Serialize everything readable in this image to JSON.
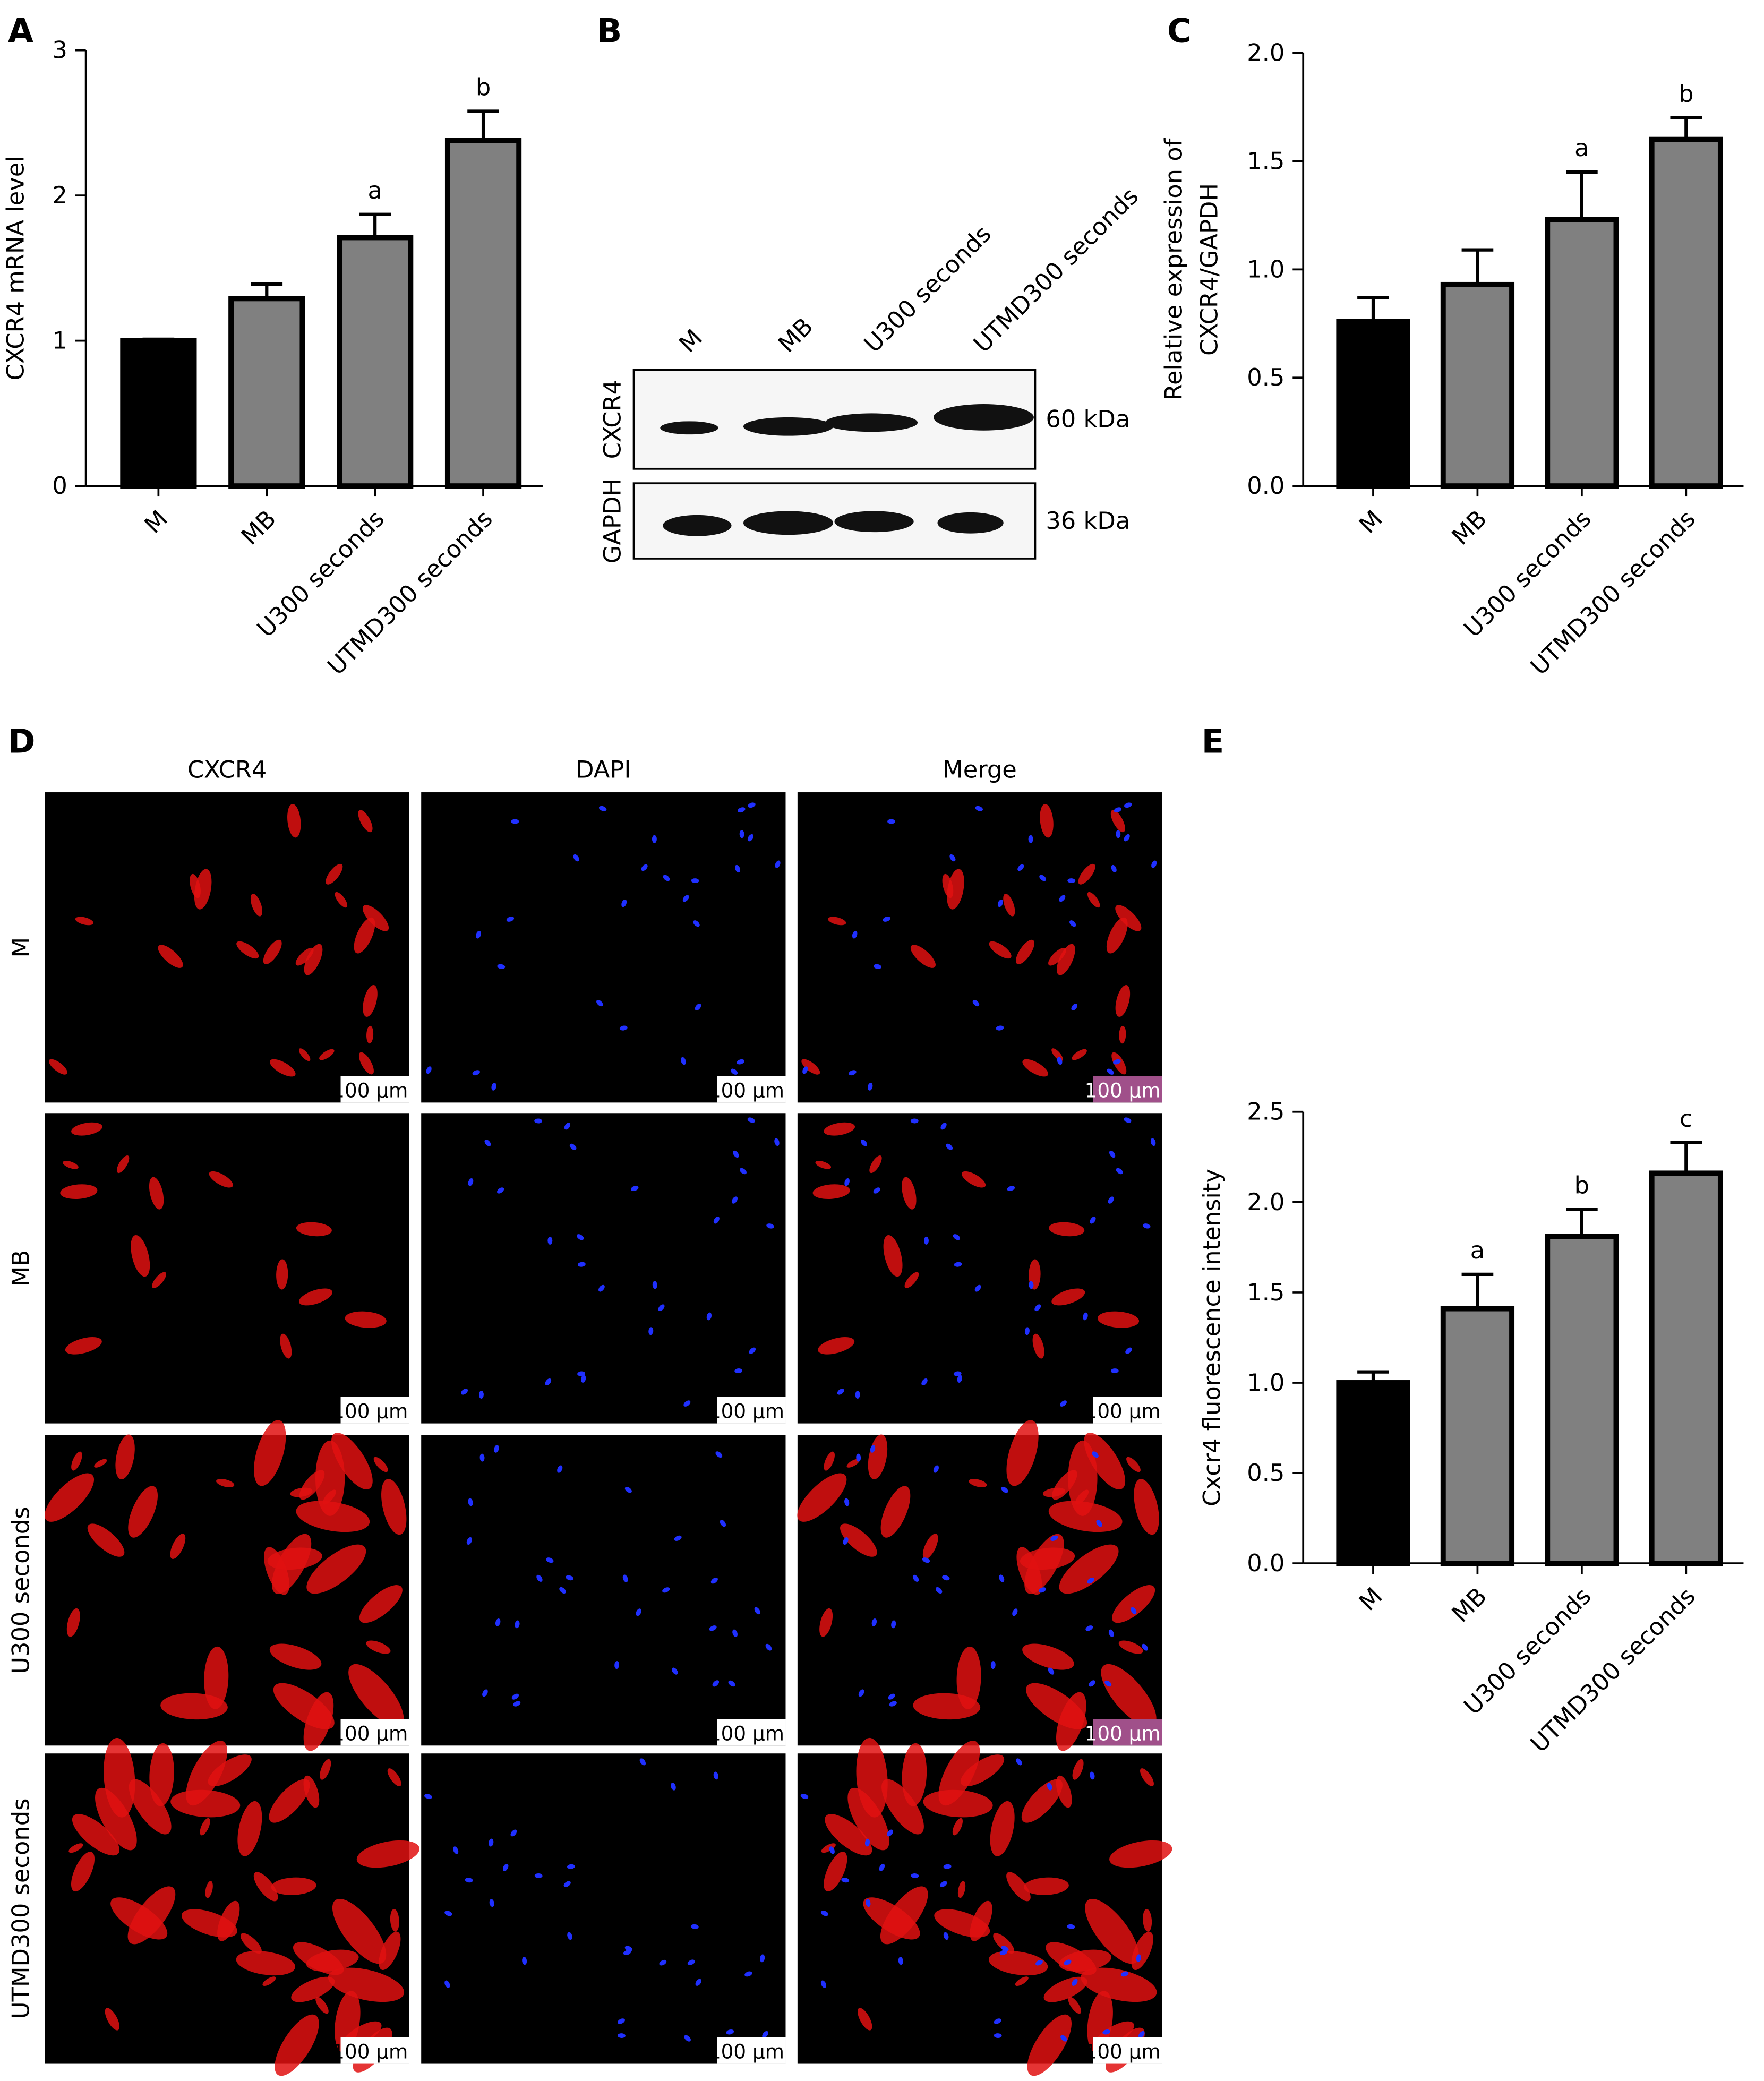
{
  "chart_data": [
    {
      "type": "bar",
      "panel": "A",
      "ylabel": [
        "CXCR4 mRNA level"
      ],
      "categories": [
        "M",
        "MB",
        "U300 seconds",
        "UTMD300 seconds"
      ],
      "values": [
        1.0,
        1.29,
        1.71,
        2.38
      ],
      "errors": [
        0.01,
        0.1,
        0.16,
        0.2
      ],
      "significance": [
        null,
        null,
        "a",
        "b"
      ],
      "colors": [
        "#000000",
        "#808080",
        "#808080",
        "#808080"
      ],
      "ylim": [
        0,
        3
      ],
      "yticks": [
        0,
        1,
        2,
        3
      ]
    },
    {
      "type": "bar",
      "panel": "C",
      "ylabel": [
        "Relative expression of",
        "CXCR4/GAPDH"
      ],
      "categories": [
        "M",
        "MB",
        "U300 seconds",
        "UTMD300 seconds"
      ],
      "values": [
        0.76,
        0.93,
        1.23,
        1.6
      ],
      "errors": [
        0.11,
        0.16,
        0.22,
        0.1
      ],
      "significance": [
        null,
        null,
        "a",
        "b"
      ],
      "colors": [
        "#000000",
        "#808080",
        "#808080",
        "#808080"
      ],
      "ylim": [
        0,
        2
      ],
      "yticks": [
        {
          "value": 0,
          "label": "0.0"
        },
        0.5,
        {
          "value": 1,
          "label": "1.0"
        },
        1.5,
        {
          "value": 2,
          "label": "2.0"
        }
      ]
    },
    {
      "type": "bar",
      "panel": "E",
      "ylabel": [
        "Cxcr4 fluorescence intensity"
      ],
      "categories": [
        "M",
        "MB",
        "U300 seconds",
        "UTMD300 seconds"
      ],
      "values": [
        1.0,
        1.41,
        1.81,
        2.16
      ],
      "errors": [
        0.06,
        0.19,
        0.15,
        0.17
      ],
      "significance": [
        null,
        "a",
        "b",
        "c"
      ],
      "colors": [
        "#000000",
        "#808080",
        "#808080",
        "#808080"
      ],
      "ylim": [
        0,
        2.5
      ],
      "yticks": [
        {
          "value": 0,
          "label": "0.0"
        },
        0.5,
        {
          "value": 1,
          "label": "1.0"
        },
        1.5,
        {
          "value": 2,
          "label": "2.0"
        },
        2.5
      ]
    }
  ],
  "western_blot": {
    "panel": "B",
    "lanes": [
      "M",
      "MB",
      "U300 seconds",
      "UTMD300 seconds"
    ],
    "rows": [
      {
        "name": "CXCR4",
        "size": "60 kDa"
      },
      {
        "name": "GAPDH",
        "size": "36 kDa"
      }
    ]
  },
  "immunofluorescence": {
    "panel": "D",
    "columns": [
      "CXCR4",
      "DAPI",
      "Merge"
    ],
    "rows": [
      "M",
      "MB",
      "U300 seconds",
      "UTMD300 seconds"
    ],
    "scale_bar": "100 µm"
  }
}
